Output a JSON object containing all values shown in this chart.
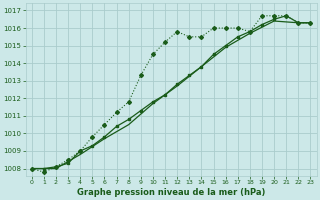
{
  "title": "Graphe pression niveau de la mer (hPa)",
  "bg_color": "#cce8e8",
  "grid_color": "#aacccc",
  "line_color": "#1a5c1a",
  "xlim_min": -0.5,
  "xlim_max": 23.5,
  "ylim_min": 1007.6,
  "ylim_max": 1017.4,
  "yticks": [
    1008,
    1009,
    1010,
    1011,
    1012,
    1013,
    1014,
    1015,
    1016,
    1017
  ],
  "xticks": [
    0,
    1,
    2,
    3,
    4,
    5,
    6,
    7,
    8,
    9,
    10,
    11,
    12,
    13,
    14,
    15,
    16,
    17,
    18,
    19,
    20,
    21,
    22,
    23
  ],
  "line1_x": [
    0,
    1,
    2,
    3,
    4,
    5,
    6,
    7,
    8,
    9,
    10,
    11,
    12,
    13,
    14,
    15,
    16,
    17,
    18,
    19,
    20,
    21,
    22,
    23
  ],
  "line1_y": [
    1008.0,
    1007.8,
    1008.1,
    1008.5,
    1009.0,
    1009.8,
    1010.5,
    1011.2,
    1011.8,
    1013.3,
    1014.5,
    1015.2,
    1015.8,
    1015.5,
    1015.5,
    1016.0,
    1016.0,
    1016.0,
    1015.8,
    1016.7,
    1016.7,
    1016.7,
    1016.3,
    1016.3
  ],
  "line2_x": [
    0,
    1,
    2,
    3,
    4,
    5,
    6,
    7,
    8,
    9,
    10,
    11,
    12,
    13,
    14,
    15,
    16,
    17,
    18,
    19,
    20,
    21,
    22,
    23
  ],
  "line2_y": [
    1008.0,
    1008.0,
    1008.1,
    1008.3,
    1009.0,
    1009.3,
    1009.8,
    1010.4,
    1010.8,
    1011.3,
    1011.8,
    1012.2,
    1012.8,
    1013.3,
    1013.8,
    1014.5,
    1015.0,
    1015.5,
    1015.8,
    1016.2,
    1016.5,
    1016.7,
    1016.3,
    1016.3
  ],
  "line3_x": [
    0,
    2,
    4,
    6,
    8,
    10,
    12,
    14,
    16,
    18,
    20,
    22,
    23
  ],
  "line3_y": [
    1008.0,
    1008.0,
    1008.8,
    1009.7,
    1010.5,
    1011.7,
    1012.7,
    1013.8,
    1014.9,
    1015.7,
    1016.4,
    1016.3,
    1016.3
  ]
}
